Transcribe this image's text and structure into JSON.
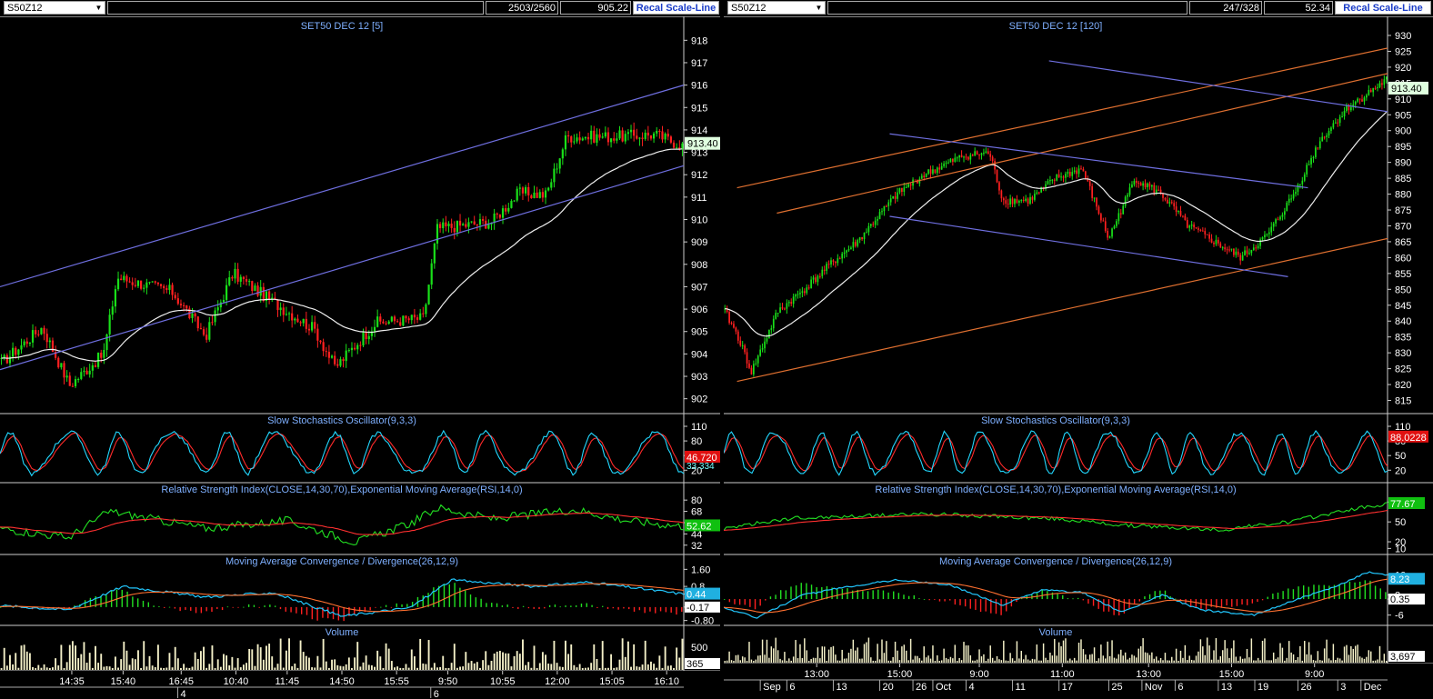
{
  "left": {
    "toolbar": {
      "symbol": "S50Z12",
      "bars": "2503/2560",
      "value": "905.22",
      "recal": "Recal Scale-Line"
    },
    "title": "SET50 DEC 12  [5]",
    "price": {
      "ylim": [
        901.5,
        918.5
      ],
      "ticks": [
        "918",
        "917",
        "916",
        "915",
        "914",
        "913",
        "912",
        "911",
        "910",
        "909",
        "908",
        "907",
        "906",
        "905",
        "904",
        "903",
        "902"
      ],
      "last": "913.40",
      "trend_lines": [
        {
          "color": "#6f6fe0",
          "from": [
            0,
            907.0
          ],
          "to": [
            1,
            916.0
          ]
        },
        {
          "color": "#6f6fe0",
          "from": [
            0,
            903.3
          ],
          "to": [
            1,
            912.4
          ]
        }
      ]
    },
    "stoch": {
      "title": "Slow Stochastics Oscillator(9,3,3)",
      "ticks": [
        "110",
        "80",
        "50",
        "20"
      ],
      "value_red": "46.720",
      "value_cyan": "33.334",
      "ylim": [
        0,
        110
      ]
    },
    "rsi": {
      "title": "Relative Strength Index(CLOSE,14,30,70),Exponential Moving Average(RSI,14,0)",
      "ticks": [
        "80",
        "68",
        "56",
        "44",
        "32"
      ],
      "value": "52.62",
      "ylim": [
        25,
        85
      ]
    },
    "macd": {
      "title": "Moving Average Convergence / Divergence(26,12,9)",
      "ticks": [
        "1.60",
        "0.8",
        "0.44",
        "-0.17",
        "-0.80"
      ],
      "value_cyan": "0.44",
      "value_white": "-0.17",
      "ylim": [
        -0.9,
        1.7
      ]
    },
    "volume": {
      "title": "Volume",
      "ticks": [
        "500"
      ],
      "value": "365"
    },
    "time_labels": [
      "14:35",
      "15:40",
      "16:45",
      "10:40",
      "11:45",
      "14:50",
      "15:55",
      "9:50",
      "10:55",
      "12:00",
      "15:05",
      "16:10"
    ],
    "day_labels": [
      "4",
      "6"
    ]
  },
  "right": {
    "toolbar": {
      "symbol": "S50Z12",
      "bars": "247/328",
      "value": "52.34",
      "recal": "Recal Scale-Line"
    },
    "title": "SET50 DEC 12  [120]",
    "price": {
      "ylim": [
        812,
        932
      ],
      "ticks": [
        "930",
        "925",
        "920",
        "915",
        "910",
        "905",
        "900",
        "895",
        "890",
        "885",
        "880",
        "875",
        "870",
        "865",
        "860",
        "855",
        "850",
        "845",
        "840",
        "835",
        "830",
        "825",
        "820",
        "815"
      ],
      "last": "913.40",
      "trend_lines": [
        {
          "color": "#e07030",
          "from": [
            0.02,
            882
          ],
          "to": [
            1,
            926
          ]
        },
        {
          "color": "#e07030",
          "from": [
            0.08,
            874
          ],
          "to": [
            1,
            918
          ]
        },
        {
          "color": "#e07030",
          "from": [
            0.02,
            821
          ],
          "to": [
            1,
            866
          ]
        },
        {
          "color": "#6f6fe0",
          "from": [
            0.25,
            899
          ],
          "to": [
            0.88,
            882
          ]
        },
        {
          "color": "#6f6fe0",
          "from": [
            0.25,
            873
          ],
          "to": [
            0.85,
            854
          ]
        },
        {
          "color": "#6f6fe0",
          "from": [
            0.49,
            922
          ],
          "to": [
            1,
            906
          ]
        }
      ]
    },
    "stoch": {
      "title": "Slow Stochastics Oscillator(9,3,3)",
      "ticks": [
        "110",
        "80",
        "50",
        "20"
      ],
      "value": "88.0228",
      "ylim": [
        0,
        110
      ]
    },
    "rsi": {
      "title": "Relative Strength Index(CLOSE,14,30,70),Exponential Moving Average(RSI,14,0)",
      "ticks": [
        "80",
        "50",
        "20",
        "10"
      ],
      "value": "77.67",
      "ylim": [
        5,
        90
      ]
    },
    "macd": {
      "title": "Moving Average Convergence / Divergence(26,12,9)",
      "ticks": [
        "10",
        "2",
        "0.35",
        "-6"
      ],
      "value_cyan": "8.23",
      "value_white": "0.35",
      "ylim": [
        -9,
        13
      ]
    },
    "volume": {
      "title": "Volume",
      "value": "3,697"
    },
    "time_labels": [
      "13:00",
      "15:00",
      "9:00",
      "11:00",
      "13:00",
      "15:00",
      "9:00"
    ],
    "day_labels": [
      "Sep",
      "6",
      "13",
      "20",
      "26",
      "Oct",
      "4",
      "11",
      "17",
      "25",
      "Nov",
      "6",
      "13",
      "19",
      "26",
      "3",
      "Dec"
    ]
  }
}
